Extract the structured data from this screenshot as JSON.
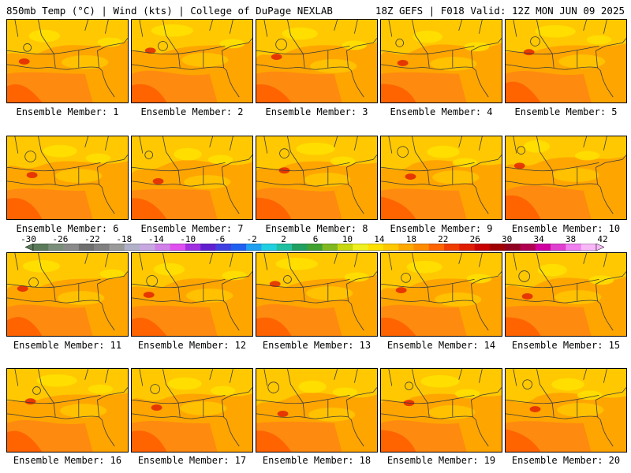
{
  "header": {
    "left": "850mb Temp (°C) | Wind (kts) | College of DuPage NEXLAB",
    "right": "18Z GEFS | F018 Valid: 12Z MON JUN 09 2025"
  },
  "panels": [
    {
      "label": "Ensemble Member: 1"
    },
    {
      "label": "Ensemble Member: 2"
    },
    {
      "label": "Ensemble Member: 3"
    },
    {
      "label": "Ensemble Member: 4"
    },
    {
      "label": "Ensemble Member: 5"
    },
    {
      "label": "Ensemble Member: 6"
    },
    {
      "label": "Ensemble Member: 7"
    },
    {
      "label": "Ensemble Member: 8"
    },
    {
      "label": "Ensemble Member: 9"
    },
    {
      "label": "Ensemble Member: 10"
    },
    {
      "label": "Ensemble Member: 11"
    },
    {
      "label": "Ensemble Member: 12"
    },
    {
      "label": "Ensemble Member: 13"
    },
    {
      "label": "Ensemble Member: 14"
    },
    {
      "label": "Ensemble Member: 15"
    },
    {
      "label": "Ensemble Member: 16"
    },
    {
      "label": "Ensemble Member: 17"
    },
    {
      "label": "Ensemble Member: 18"
    },
    {
      "label": "Ensemble Member: 19"
    },
    {
      "label": "Ensemble Member: 20"
    }
  ],
  "colorbar": {
    "ticks": [
      "-30",
      "-26",
      "-22",
      "-18",
      "-14",
      "-10",
      "-6",
      "-2",
      "2",
      "6",
      "10",
      "14",
      "18",
      "22",
      "26",
      "30",
      "34",
      "38",
      "42"
    ],
    "colors": [
      "#5a7a5a",
      "#7a8f7a",
      "#8a8a8a",
      "#6e6e6e",
      "#808080",
      "#9a9a9a",
      "#b0b0c8",
      "#c8a8e0",
      "#d080e8",
      "#e050f0",
      "#a030e0",
      "#6020d0",
      "#4040e0",
      "#2060f0",
      "#20a0f0",
      "#20d0e0",
      "#20c0a0",
      "#20a060",
      "#40a030",
      "#80b820",
      "#c8d810",
      "#f0f020",
      "#ffe000",
      "#ffc800",
      "#ffa800",
      "#ff8c00",
      "#ff6400",
      "#f03c00",
      "#e01c00",
      "#c80000",
      "#a00000",
      "#900020",
      "#b00050",
      "#d000a0",
      "#e040d0",
      "#f080f0",
      "#f8b8f8"
    ]
  },
  "map_colors": {
    "base": "#ffa500",
    "light": "#ffc800",
    "yellow": "#ffe000",
    "warm": "#ff8a10",
    "hot": "#ff6400",
    "red": "#e01c00"
  }
}
